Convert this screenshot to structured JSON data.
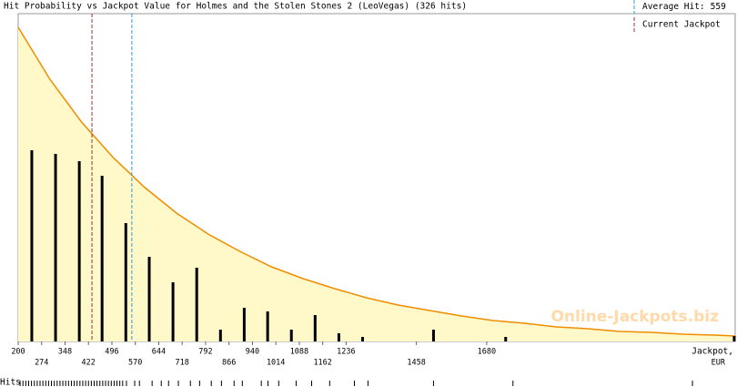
{
  "chart_data": {
    "type": "bar",
    "title": "Hit Probability vs Jackpot Value for Holmes and the Stolen Stones 2 (LeoVegas) (326 hits)",
    "x": [
      243,
      318,
      393,
      465,
      540,
      614,
      689,
      764,
      839,
      914,
      988,
      1063,
      1138,
      1213,
      1288,
      1512,
      1740,
      2462
    ],
    "values": [
      210,
      206,
      198,
      182,
      130,
      93,
      65,
      81,
      13,
      37,
      33,
      13,
      29,
      9,
      5,
      13,
      5,
      6
    ],
    "color": "#000000",
    "xlim": [
      200,
      2465
    ],
    "ylim": [
      0,
      360
    ],
    "xticks": [
      200,
      274,
      348,
      422,
      496,
      570,
      644,
      718,
      792,
      866,
      940,
      1014,
      1088,
      1162,
      1236,
      1458,
      1680
    ],
    "xlabel": [
      "Jackpot,",
      "EUR"
    ],
    "curve": {
      "color": "#f08c00",
      "fill": "#fff8c8",
      "x": [
        200,
        300,
        400,
        500,
        600,
        700,
        800,
        900,
        1000,
        1100,
        1200,
        1300,
        1400,
        1500,
        1600,
        1700,
        1800,
        1900,
        2000,
        2100,
        2200,
        2300,
        2400,
        2465
      ],
      "values": [
        345,
        288,
        241,
        202,
        169,
        141,
        118,
        99,
        82,
        69,
        58,
        48,
        40,
        34,
        28,
        23,
        20,
        16,
        14,
        11,
        10,
        8,
        7,
        6
      ]
    },
    "average_hit": {
      "label": "Average Hit:",
      "value": 559,
      "color": "#3399cc"
    },
    "current_jackpot": {
      "label": "Current Jackpot",
      "value": 433,
      "color": "#993333"
    },
    "hits_label": "Hits",
    "hits": [
      206,
      215,
      224,
      233,
      242,
      251,
      260,
      269,
      278,
      287,
      296,
      305,
      314,
      323,
      332,
      341,
      350,
      359,
      368,
      377,
      386,
      395,
      404,
      413,
      422,
      431,
      440,
      449,
      458,
      467,
      476,
      485,
      494,
      503,
      512,
      521,
      530,
      542,
      568,
      583,
      623,
      652,
      675,
      706,
      744,
      773,
      810,
      842,
      882,
      908,
      968,
      989,
      1023,
      1078,
      1127,
      1184,
      1262,
      1305,
      1512,
      1763,
      2330
    ],
    "watermark": "Online-Jackpots.biz"
  }
}
